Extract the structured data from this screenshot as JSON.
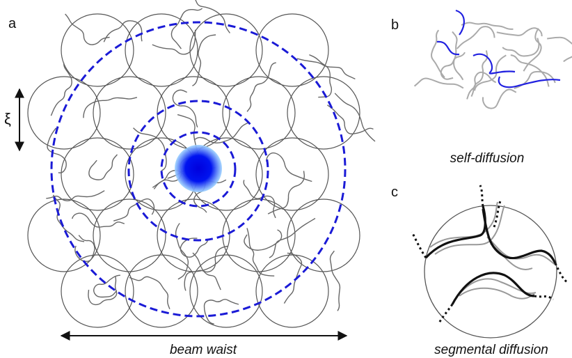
{
  "panel_a": {
    "label": "a",
    "xi": "ξ",
    "caption": "beam waist"
  },
  "panel_b": {
    "label": "b",
    "caption": "self-diffusion"
  },
  "panel_c": {
    "label": "c",
    "caption": "segmental diffusion"
  }
}
